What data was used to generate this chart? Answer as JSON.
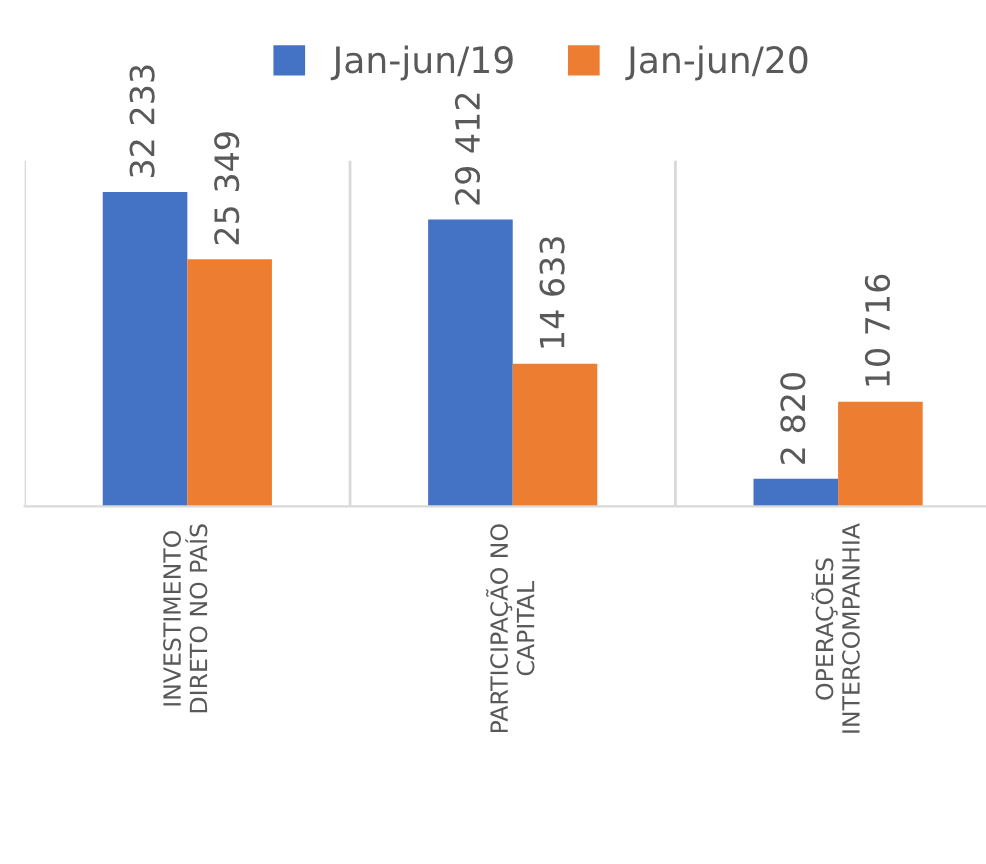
{
  "chart_data": {
    "type": "bar",
    "categories": [
      "INVESTIMENTO\nDIRETO NO PAÍS",
      "PARTICIPAÇÃO NO\nCAPITAL",
      "OPERAÇÕES\nINTERCOMPANHIA"
    ],
    "series": [
      {
        "name": "Jan-jun/19",
        "color": "#4472c4",
        "values": [
          32233,
          29412,
          2820
        ],
        "value_labels": [
          "32 233",
          "29 412",
          "2 820"
        ]
      },
      {
        "name": "Jan-jun/20",
        "color": "#ed7d31",
        "values": [
          25349,
          14633,
          10716
        ],
        "value_labels": [
          "25 349",
          "14 633",
          "10 716"
        ]
      }
    ],
    "legend": "top",
    "grid": "x"
  }
}
